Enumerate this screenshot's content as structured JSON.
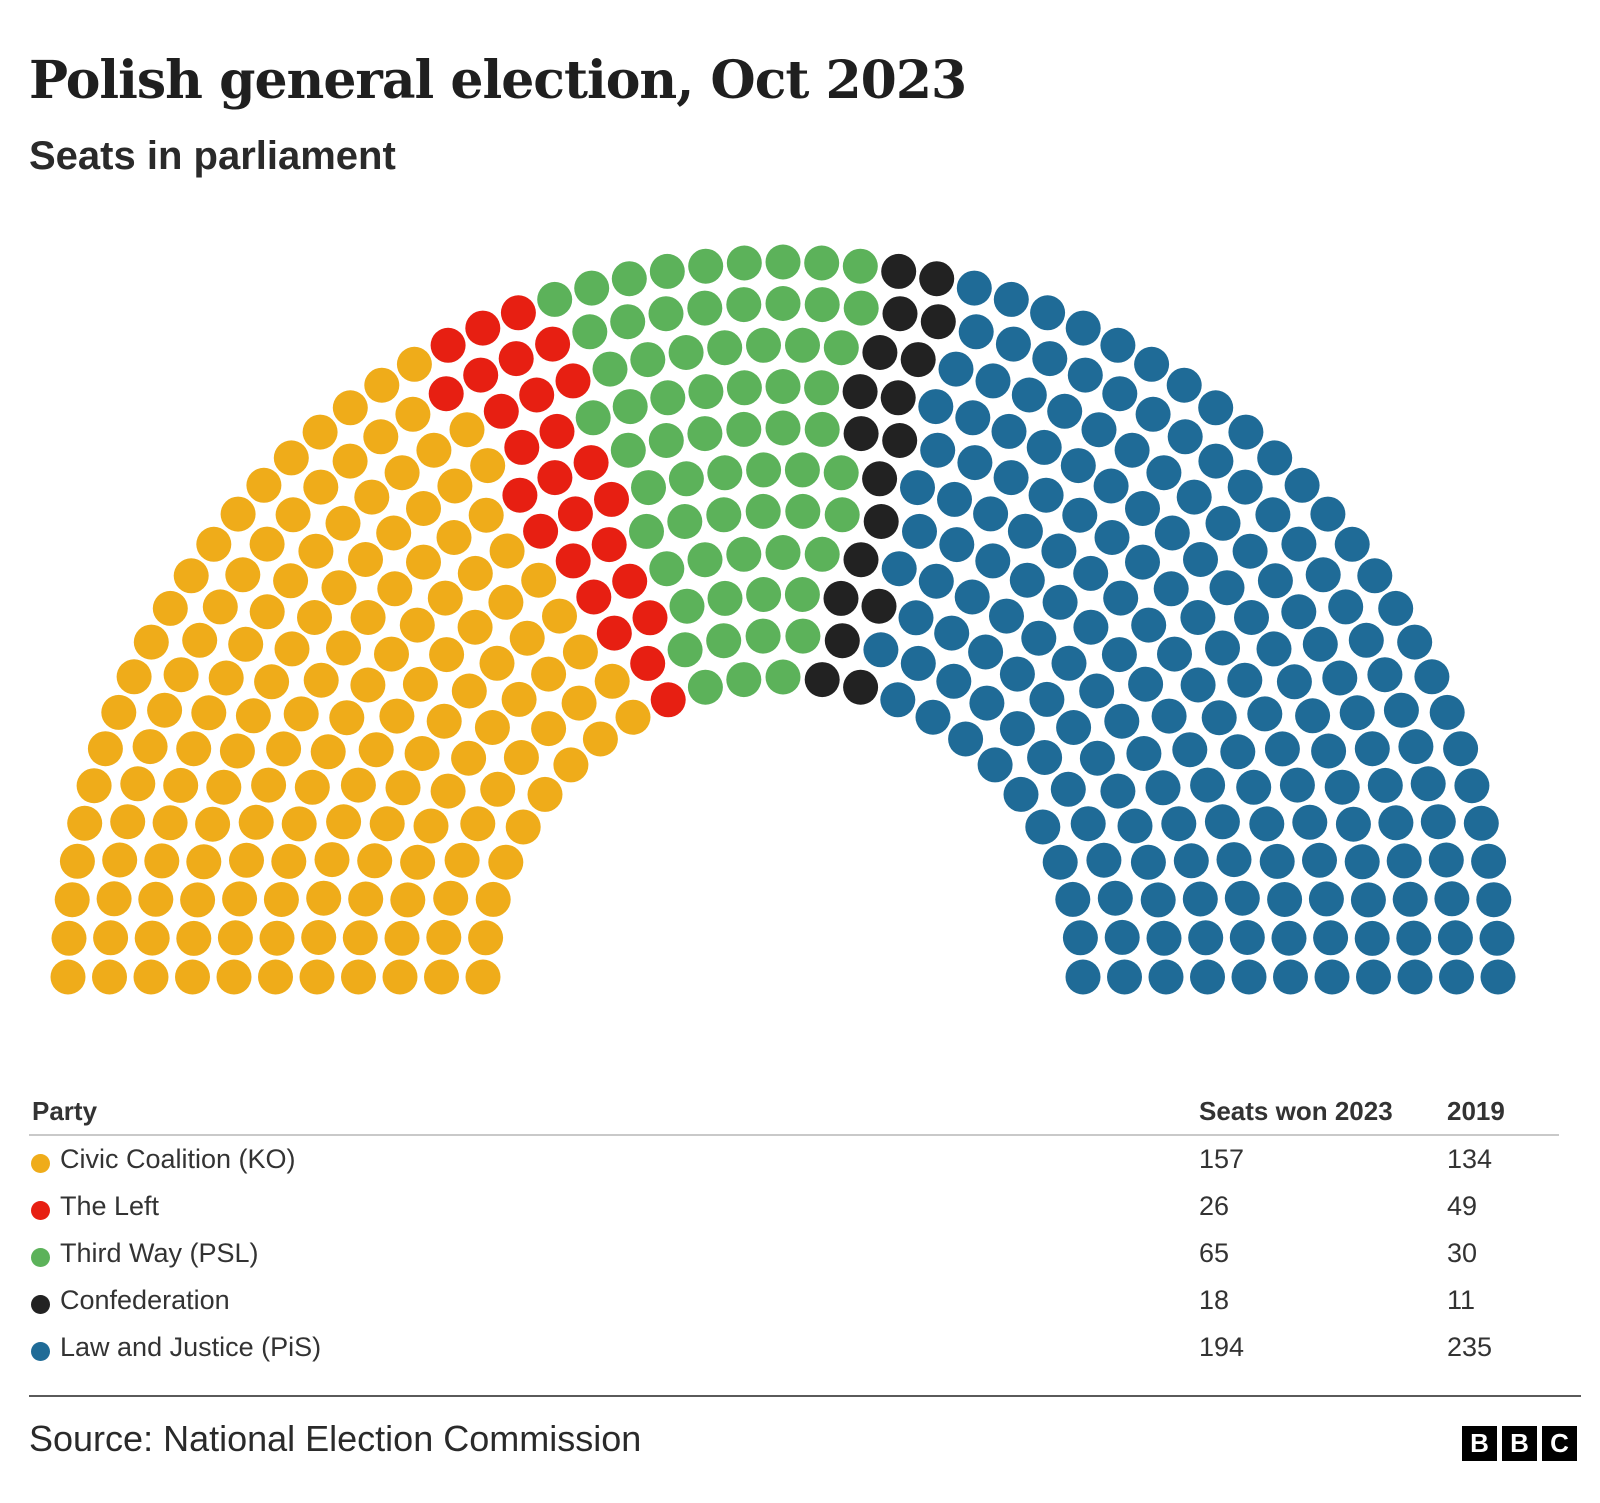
{
  "title": "Polish general election, Oct 2023",
  "subtitle": "Seats in parliament",
  "chart_data": {
    "type": "parliament",
    "title": "Polish general election, Oct 2023",
    "subtitle": "Seats in parliament",
    "total_seats": 460,
    "columns": [
      "Party",
      "Seats won 2023",
      "2019"
    ],
    "series": [
      {
        "name": "Civic Coalition (KO)",
        "seats_2023": 157,
        "seats_2019": 134,
        "color": "#efac1a"
      },
      {
        "name": "The Left",
        "seats_2023": 26,
        "seats_2019": 49,
        "color": "#e71f12"
      },
      {
        "name": "Third Way (PSL)",
        "seats_2023": 65,
        "seats_2019": 30,
        "color": "#5cb25a"
      },
      {
        "name": "Confederation",
        "seats_2023": 18,
        "seats_2019": 11,
        "color": "#222222"
      },
      {
        "name": "Law and Justice (PiS)",
        "seats_2023": 194,
        "seats_2019": 235,
        "color": "#1f6b97"
      }
    ]
  },
  "table": {
    "headers": {
      "party": "Party",
      "seats_2023": "Seats won 2023",
      "seats_2019": "2019"
    },
    "rows": [
      {
        "party": "Civic Coalition (KO)",
        "seats_2023": "157",
        "seats_2019": "134",
        "color": "#efac1a"
      },
      {
        "party": "The Left",
        "seats_2023": "26",
        "seats_2019": "49",
        "color": "#e71f12"
      },
      {
        "party": "Third Way (PSL)",
        "seats_2023": "65",
        "seats_2019": "30",
        "color": "#5cb25a"
      },
      {
        "party": "Confederation",
        "seats_2023": "18",
        "seats_2019": "11",
        "color": "#222222"
      },
      {
        "party": "Law and Justice (PiS)",
        "seats_2023": "194",
        "seats_2019": "235",
        "color": "#1f6b97"
      }
    ]
  },
  "footer": {
    "source": "Source: National Election Commission",
    "logo_letters": [
      "B",
      "B",
      "C"
    ]
  }
}
